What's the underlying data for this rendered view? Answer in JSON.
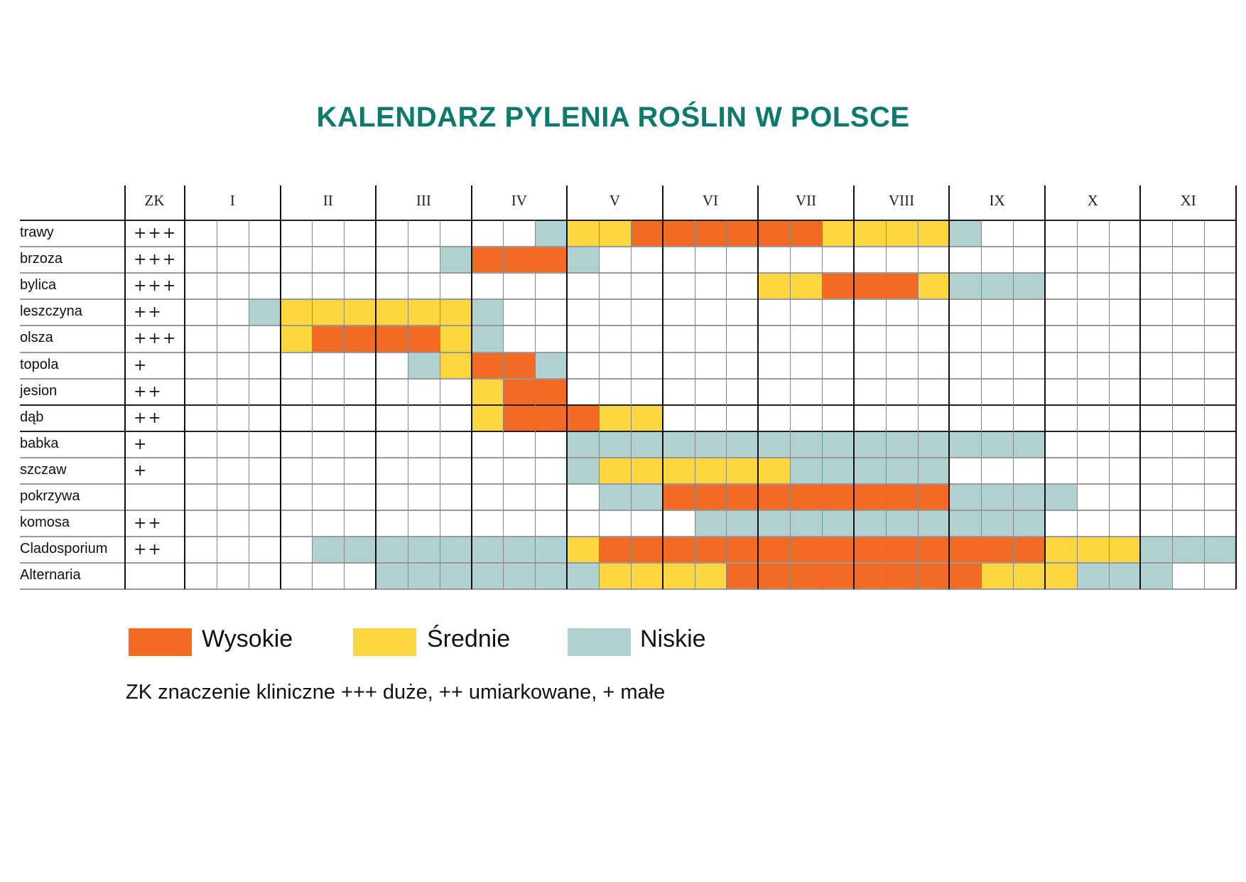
{
  "chart_data": {
    "type": "table",
    "title": "KALENDARZ PYLENIA ROŚLIN W POLSCE",
    "zk_header": "ZK",
    "months": [
      "I",
      "II",
      "III",
      "IV",
      "V",
      "VI",
      "VII",
      "VIII",
      "IX",
      "X",
      "XI"
    ],
    "periods_per_month": 3,
    "level_codes": {
      "W": "Wysokie",
      "S": "Średnie",
      "N": "Niskie",
      "-": ""
    },
    "colors": {
      "W": "#F26A23",
      "S": "#FED73F",
      "N": "#B0D1D0"
    },
    "rows": [
      {
        "name": "trawy",
        "zk": "+++",
        "levels": "-----------NSSWWWWWWSSSSN--------"
      },
      {
        "name": "brzoza",
        "zk": "+++",
        "levels": "--------NWWWN--------------------"
      },
      {
        "name": "bylica",
        "zk": "+++",
        "levels": "------------------SSWWWSNNN------"
      },
      {
        "name": "leszczyna",
        "zk": "++",
        "levels": "--NSSSSSSN-----------------------"
      },
      {
        "name": "olsza",
        "zk": "+++",
        "levels": "---SWWWWSN-----------------------"
      },
      {
        "name": "topola",
        "zk": "+",
        "levels": "-------NSWWN---------------------"
      },
      {
        "name": "jesion",
        "zk": "++",
        "levels": "---------SWW---------------------"
      },
      {
        "name": "dąb",
        "zk": "++",
        "levels": "---------SWWWSS------------------"
      },
      {
        "name": "babka",
        "zk": "+",
        "levels": "------------NNNNNNNNNNNNNNN------"
      },
      {
        "name": "szczaw",
        "zk": "+",
        "levels": "------------NSSSSSSNNNNN---------"
      },
      {
        "name": "pokrzywa",
        "zk": "",
        "levels": "-------------NNWWWWWWWWWNNNN-----"
      },
      {
        "name": "komosa",
        "zk": "++",
        "levels": "----------------NNNNNNNNNNN------"
      },
      {
        "name": "Cladosporium",
        "zk": "++",
        "levels": "----NNNNNNNNSWWWWWWWWWWWWWWSSSNNN"
      },
      {
        "name": "Alternaria",
        "zk": "",
        "levels": "------NNNNNNNSSSSWWWWWWWWSSSNNN--"
      }
    ]
  },
  "legend": {
    "high": "Wysokie",
    "medium": "Średnie",
    "low": "Niskie"
  },
  "note": "ZK znaczenie kliniczne +++ duże, ++ umiarkowane, + małe"
}
